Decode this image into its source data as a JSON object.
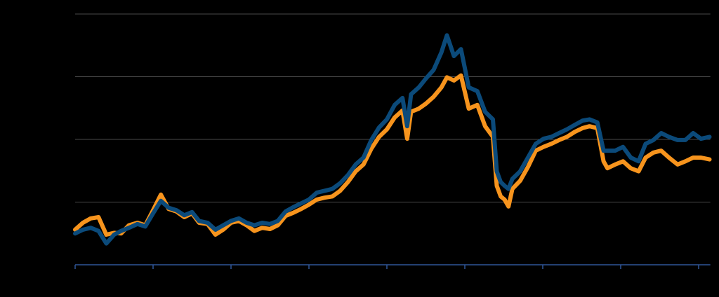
{
  "chart_data": {
    "type": "line",
    "x": [
      0,
      0.1,
      0.2,
      0.3,
      0.4,
      0.5,
      0.59,
      0.69,
      0.8,
      0.9,
      1.0,
      1.1,
      1.2,
      1.3,
      1.4,
      1.5,
      1.59,
      1.7,
      1.8,
      1.9,
      2.0,
      2.1,
      2.2,
      2.3,
      2.4,
      2.5,
      2.6,
      2.7,
      2.8,
      2.9,
      3.0,
      3.1,
      3.2,
      3.3,
      3.4,
      3.5,
      3.6,
      3.7,
      3.8,
      3.9,
      4.0,
      4.1,
      4.2,
      4.26,
      4.31,
      4.41,
      4.5,
      4.6,
      4.7,
      4.77,
      4.86,
      4.95,
      5.05,
      5.16,
      5.26,
      5.36,
      5.41,
      5.46,
      5.51,
      5.56,
      5.61,
      5.71,
      5.81,
      5.91,
      6.01,
      6.11,
      6.21,
      6.31,
      6.41,
      6.51,
      6.6,
      6.7,
      6.78,
      6.83,
      6.93,
      7.03,
      7.13,
      7.23,
      7.32,
      7.42,
      7.52,
      7.62,
      7.73,
      7.83,
      7.93,
      8.03,
      8.14
    ],
    "series": [
      {
        "color": "#f7941d",
        "values": [
          0.56,
          0.67,
          0.74,
          0.76,
          0.48,
          0.51,
          0.5,
          0.63,
          0.67,
          0.63,
          0.87,
          1.12,
          0.89,
          0.85,
          0.76,
          0.82,
          0.67,
          0.65,
          0.48,
          0.56,
          0.67,
          0.7,
          0.63,
          0.54,
          0.59,
          0.57,
          0.63,
          0.78,
          0.83,
          0.89,
          0.96,
          1.04,
          1.07,
          1.09,
          1.18,
          1.32,
          1.49,
          1.6,
          1.85,
          2.04,
          2.16,
          2.35,
          2.46,
          2.01,
          2.44,
          2.49,
          2.57,
          2.68,
          2.83,
          2.99,
          2.94,
          3.02,
          2.49,
          2.55,
          2.21,
          2.04,
          1.26,
          1.09,
          1.04,
          0.93,
          1.21,
          1.34,
          1.56,
          1.82,
          1.88,
          1.93,
          1.99,
          2.04,
          2.12,
          2.18,
          2.21,
          2.18,
          1.65,
          1.54,
          1.6,
          1.65,
          1.54,
          1.49,
          1.71,
          1.79,
          1.82,
          1.71,
          1.6,
          1.65,
          1.71,
          1.71,
          1.68
        ]
      },
      {
        "color": "#0b4a7a",
        "values": [
          0.5,
          0.56,
          0.59,
          0.54,
          0.34,
          0.48,
          0.54,
          0.59,
          0.65,
          0.61,
          0.82,
          1.02,
          0.91,
          0.87,
          0.79,
          0.84,
          0.7,
          0.67,
          0.56,
          0.63,
          0.7,
          0.74,
          0.67,
          0.63,
          0.67,
          0.65,
          0.7,
          0.85,
          0.92,
          0.98,
          1.04,
          1.15,
          1.18,
          1.21,
          1.3,
          1.43,
          1.6,
          1.71,
          1.99,
          2.19,
          2.32,
          2.55,
          2.66,
          2.21,
          2.72,
          2.83,
          2.97,
          3.11,
          3.39,
          3.66,
          3.33,
          3.44,
          2.83,
          2.77,
          2.44,
          2.32,
          1.49,
          1.32,
          1.26,
          1.21,
          1.37,
          1.49,
          1.71,
          1.93,
          2.01,
          2.04,
          2.1,
          2.16,
          2.23,
          2.3,
          2.32,
          2.27,
          1.82,
          1.82,
          1.82,
          1.88,
          1.71,
          1.65,
          1.93,
          1.99,
          2.1,
          2.04,
          1.99,
          1.99,
          2.1,
          2.01,
          2.04
        ]
      }
    ],
    "xlim": [
      0,
      8.15
    ],
    "xticks": [
      0,
      1,
      2,
      3,
      4,
      5,
      6,
      7,
      8
    ],
    "ylim": [
      0,
      4
    ],
    "yticks": [
      0,
      1,
      2,
      3,
      4
    ],
    "grid": true
  }
}
